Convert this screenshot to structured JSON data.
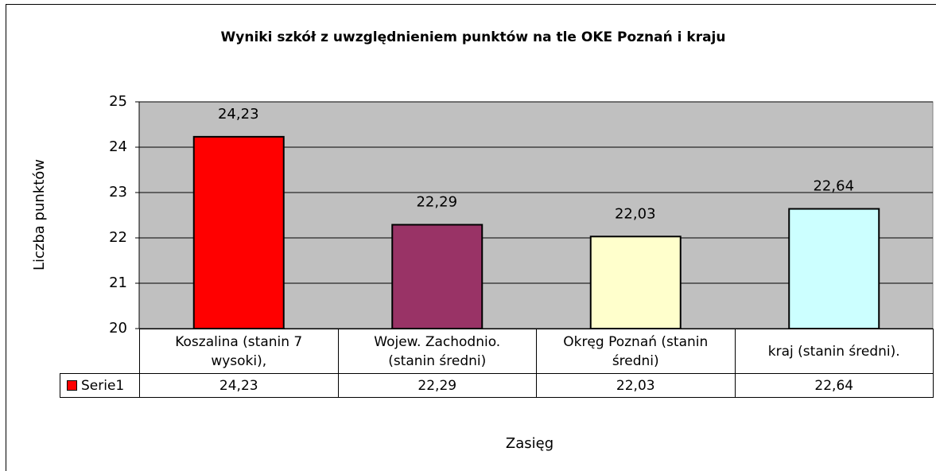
{
  "chart_data": {
    "type": "bar",
    "title": "Wyniki szkół  z uwzględnieniem punktów na tle OKE Poznań  i kraju",
    "x_label": "Zasięg",
    "y_label": "Liczba punktów",
    "categories": [
      "Koszalina (stanin 7 wysoki),",
      "Wojew. Zachodnio. (stanin średni)",
      "Okręg Poznań (stanin średni)",
      "kraj (stanin średni)."
    ],
    "series": [
      {
        "name": "Serie1",
        "color": "#ff0000",
        "colors": [
          "#ff0000",
          "#993366",
          "#ffffcc",
          "#ccffff"
        ],
        "values": [
          24.23,
          22.29,
          22.03,
          22.64
        ],
        "value_labels": [
          "24,23",
          "22,29",
          "22,03",
          "22,64"
        ]
      }
    ],
    "ylim": [
      20,
      25
    ],
    "yticks": [
      20,
      21,
      22,
      23,
      24,
      25
    ],
    "grid": true,
    "data_table": true
  }
}
